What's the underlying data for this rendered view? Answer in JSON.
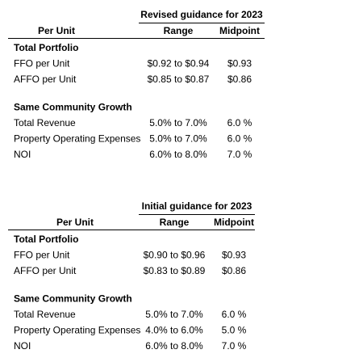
{
  "tables": [
    {
      "title": "Revised guidance for 2023",
      "headers": [
        "Per Unit",
        "Range",
        "Midpoint"
      ],
      "sections": [
        {
          "heading": "Total Portfolio",
          "rows": [
            [
              "FFO per Unit",
              "$0.92 to $0.94",
              "$0.93"
            ],
            [
              "AFFO per Unit",
              "$0.85 to $0.87",
              "$0.86"
            ]
          ]
        },
        {
          "heading": "Same Community Growth",
          "rows": [
            [
              "Total Revenue",
              "5.0% to 7.0%",
              "6.0 %"
            ],
            [
              "Property Operating Expenses",
              "5.0% to 7.0%",
              "6.0 %"
            ],
            [
              "NOI",
              "6.0% to 8.0%",
              "7.0 %"
            ]
          ]
        }
      ]
    },
    {
      "title": "Initial guidance for 2023",
      "headers": [
        "Per Unit",
        "Range",
        "Midpoint"
      ],
      "sections": [
        {
          "heading": "Total Portfolio",
          "rows": [
            [
              "FFO per Unit",
              "$0.90 to $0.96",
              "$0.93"
            ],
            [
              "AFFO per Unit",
              "$0.83 to $0.89",
              "$0.86"
            ]
          ]
        },
        {
          "heading": "Same Community Growth",
          "rows": [
            [
              "Total Revenue",
              "5.0% to 7.0%",
              "6.0 %"
            ],
            [
              "Property Operating Expenses",
              "4.0% to 6.0%",
              "5.0 %"
            ],
            [
              "NOI",
              "6.0% to 8.0%",
              "7.0 %"
            ]
          ]
        }
      ]
    }
  ]
}
